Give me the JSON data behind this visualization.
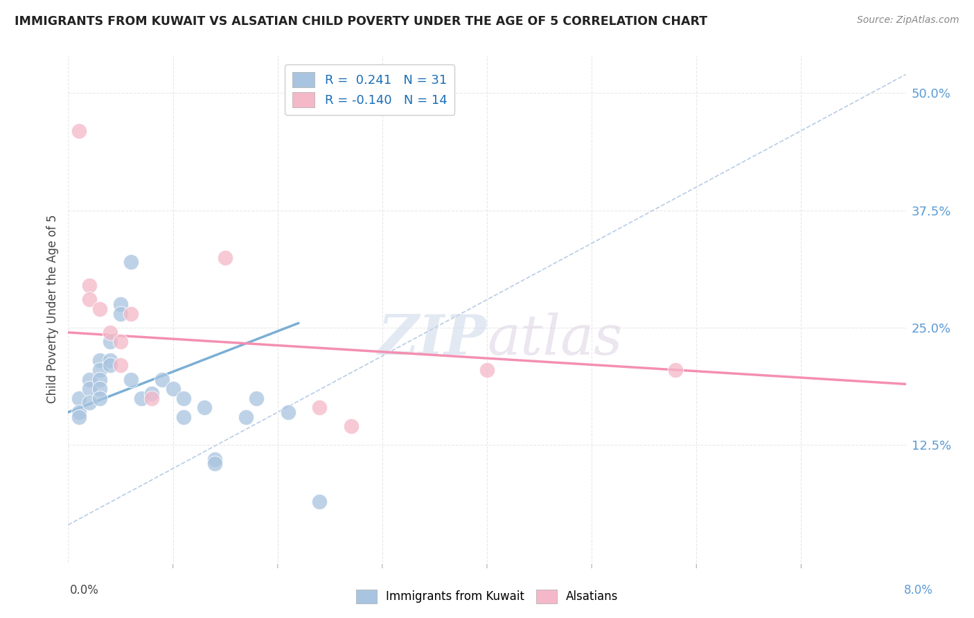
{
  "title": "IMMIGRANTS FROM KUWAIT VS ALSATIAN CHILD POVERTY UNDER THE AGE OF 5 CORRELATION CHART",
  "source": "Source: ZipAtlas.com",
  "ylabel": "Child Poverty Under the Age of 5",
  "yticks": [
    0.0,
    0.125,
    0.25,
    0.375,
    0.5
  ],
  "ytick_labels": [
    "",
    "12.5%",
    "25.0%",
    "37.5%",
    "50.0%"
  ],
  "x_min": 0.0,
  "x_max": 0.08,
  "y_min": 0.0,
  "y_max": 0.54,
  "legend_entries": [
    {
      "label": "R =  0.241   N = 31",
      "color": "#a8c4e0"
    },
    {
      "label": "R = -0.140   N = 14",
      "color": "#f4b8c8"
    }
  ],
  "blue_scatter": [
    [
      0.001,
      0.175
    ],
    [
      0.001,
      0.16
    ],
    [
      0.001,
      0.155
    ],
    [
      0.002,
      0.195
    ],
    [
      0.002,
      0.185
    ],
    [
      0.002,
      0.17
    ],
    [
      0.003,
      0.215
    ],
    [
      0.003,
      0.205
    ],
    [
      0.003,
      0.195
    ],
    [
      0.003,
      0.185
    ],
    [
      0.003,
      0.175
    ],
    [
      0.004,
      0.235
    ],
    [
      0.004,
      0.215
    ],
    [
      0.004,
      0.21
    ],
    [
      0.005,
      0.275
    ],
    [
      0.005,
      0.265
    ],
    [
      0.006,
      0.32
    ],
    [
      0.006,
      0.195
    ],
    [
      0.007,
      0.175
    ],
    [
      0.008,
      0.18
    ],
    [
      0.009,
      0.195
    ],
    [
      0.01,
      0.185
    ],
    [
      0.011,
      0.175
    ],
    [
      0.011,
      0.155
    ],
    [
      0.013,
      0.165
    ],
    [
      0.014,
      0.11
    ],
    [
      0.014,
      0.105
    ],
    [
      0.017,
      0.155
    ],
    [
      0.018,
      0.175
    ],
    [
      0.021,
      0.16
    ],
    [
      0.024,
      0.065
    ]
  ],
  "pink_scatter": [
    [
      0.001,
      0.46
    ],
    [
      0.002,
      0.295
    ],
    [
      0.002,
      0.28
    ],
    [
      0.003,
      0.27
    ],
    [
      0.004,
      0.245
    ],
    [
      0.005,
      0.235
    ],
    [
      0.005,
      0.21
    ],
    [
      0.006,
      0.265
    ],
    [
      0.008,
      0.175
    ],
    [
      0.015,
      0.325
    ],
    [
      0.024,
      0.165
    ],
    [
      0.027,
      0.145
    ],
    [
      0.04,
      0.205
    ],
    [
      0.058,
      0.205
    ]
  ],
  "blue_line_x": [
    0.0,
    0.022
  ],
  "blue_line_y": [
    0.16,
    0.255
  ],
  "pink_line_x": [
    0.0,
    0.08
  ],
  "pink_line_y": [
    0.245,
    0.19
  ],
  "dashed_line_x": [
    0.0,
    0.08
  ],
  "dashed_line_y": [
    0.04,
    0.52
  ],
  "blue_color": "#7bafd4",
  "blue_color_light": "#a8c4e0",
  "pink_color": "#f48fb1",
  "pink_color_light": "#f4b8c8",
  "dashed_color": "#b8cce4",
  "watermark_zip": "ZIP",
  "watermark_atlas": "atlas",
  "background_color": "#ffffff",
  "grid_color": "#e8e8e8"
}
